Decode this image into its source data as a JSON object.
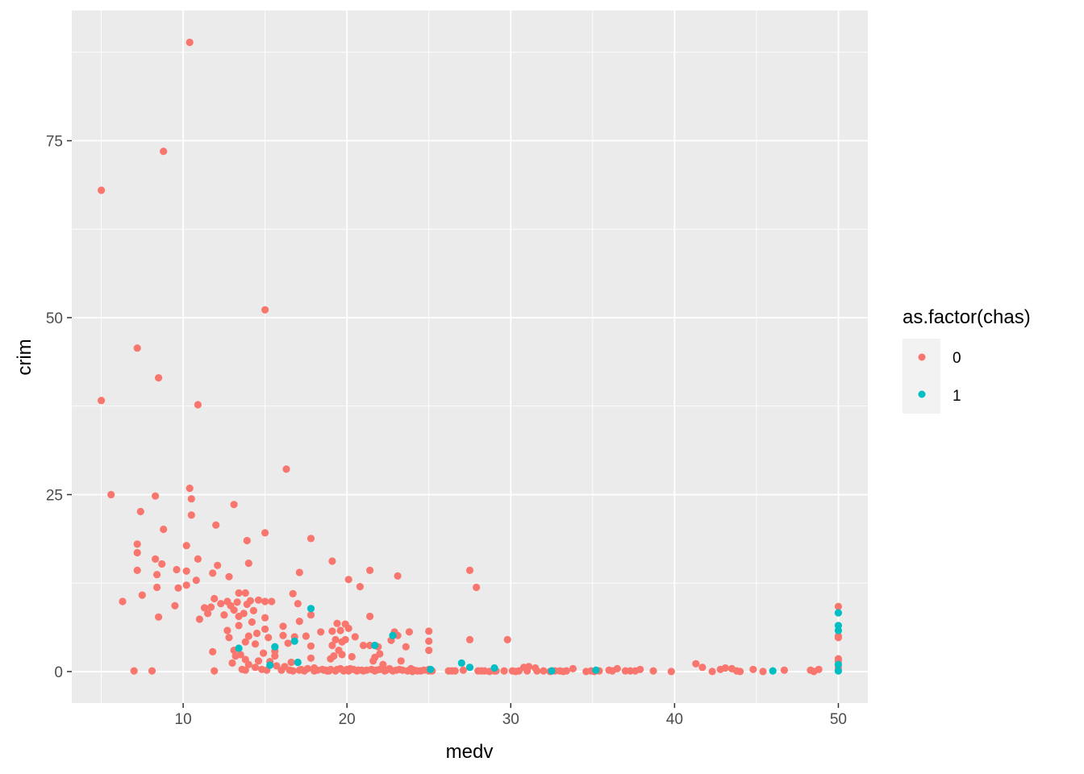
{
  "chart_data": {
    "type": "scatter",
    "title": "",
    "xlabel": "medv",
    "ylabel": "crim",
    "xlim": [
      3.2,
      51.8
    ],
    "ylim": [
      -4.45,
      93.4
    ],
    "x_ticks": [
      10,
      20,
      30,
      40,
      50
    ],
    "y_ticks": [
      0,
      25,
      50,
      75
    ],
    "x_tick_labels": [
      "10",
      "20",
      "30",
      "40",
      "50"
    ],
    "y_tick_labels": [
      "0",
      "25",
      "50",
      "75"
    ],
    "grid": true,
    "legend": {
      "title": "as.factor(chas)",
      "position": "right",
      "entries": [
        {
          "label": "0",
          "color": "#F8766D"
        },
        {
          "label": "1",
          "color": "#00BFC4"
        }
      ]
    },
    "series": [
      {
        "name": "0",
        "color": "#F8766D",
        "points": [
          [
            5,
            68.0
          ],
          [
            5,
            38.3
          ],
          [
            5.6,
            25.0
          ],
          [
            6.3,
            9.9
          ],
          [
            7,
            0.1
          ],
          [
            7.2,
            45.7
          ],
          [
            7.2,
            18.0
          ],
          [
            7.2,
            16.8
          ],
          [
            7.2,
            14.3
          ],
          [
            7.4,
            22.6
          ],
          [
            7.5,
            10.8
          ],
          [
            8.1,
            0.1
          ],
          [
            8.3,
            24.8
          ],
          [
            8.3,
            15.9
          ],
          [
            8.4,
            13.7
          ],
          [
            8.4,
            11.9
          ],
          [
            8.5,
            41.5
          ],
          [
            8.5,
            7.7
          ],
          [
            8.7,
            15.2
          ],
          [
            8.8,
            73.5
          ],
          [
            8.8,
            20.1
          ],
          [
            9.5,
            9.3
          ],
          [
            9.6,
            14.4
          ],
          [
            9.7,
            11.8
          ],
          [
            10.2,
            14.2
          ],
          [
            10.2,
            12.2
          ],
          [
            10.2,
            17.8
          ],
          [
            10.4,
            88.9
          ],
          [
            10.4,
            25.9
          ],
          [
            10.5,
            24.4
          ],
          [
            10.5,
            22.1
          ],
          [
            10.8,
            12.9
          ],
          [
            10.9,
            37.7
          ],
          [
            10.9,
            15.9
          ],
          [
            11,
            7.4
          ],
          [
            11.3,
            9.0
          ],
          [
            11.5,
            8.2
          ],
          [
            11.7,
            9.1
          ],
          [
            11.8,
            13.9
          ],
          [
            11.8,
            2.8
          ],
          [
            11.9,
            10.3
          ],
          [
            11.9,
            0.1
          ],
          [
            12,
            20.7
          ],
          [
            12.1,
            15.0
          ],
          [
            12.3,
            9.6
          ],
          [
            12.5,
            8.0
          ],
          [
            12.7,
            9.9
          ],
          [
            12.7,
            5.8
          ],
          [
            12.8,
            13.4
          ],
          [
            12.8,
            4.8
          ],
          [
            12.9,
            9.3
          ],
          [
            13,
            1.2
          ],
          [
            13.1,
            23.6
          ],
          [
            13.1,
            8.7
          ],
          [
            13.1,
            3.0
          ],
          [
            13.2,
            2.2
          ],
          [
            13.3,
            9.8
          ],
          [
            13.4,
            11.1
          ],
          [
            13.4,
            7.8
          ],
          [
            13.4,
            6.5
          ],
          [
            13.5,
            2.4
          ],
          [
            13.6,
            0.3
          ],
          [
            13.7,
            8.2
          ],
          [
            13.8,
            11.1
          ],
          [
            13.8,
            4.2
          ],
          [
            13.8,
            1.7
          ],
          [
            13.8,
            0.2
          ],
          [
            13.9,
            18.5
          ],
          [
            13.9,
            9.5
          ],
          [
            14,
            15.3
          ],
          [
            14,
            5.0
          ],
          [
            14,
            1.0
          ],
          [
            14.1,
            10.0
          ],
          [
            14.2,
            7.0
          ],
          [
            14.3,
            8.6
          ],
          [
            14.4,
            3.9
          ],
          [
            14.4,
            0.6
          ],
          [
            14.5,
            5.4
          ],
          [
            14.6,
            1.5
          ],
          [
            14.6,
            10.1
          ],
          [
            14.8,
            0.3
          ],
          [
            14.9,
            2.6
          ],
          [
            15,
            9.9
          ],
          [
            15,
            7.6
          ],
          [
            15,
            6.0
          ],
          [
            15,
            51.1
          ],
          [
            15,
            19.6
          ],
          [
            15.1,
            0.2
          ],
          [
            15.2,
            4.8
          ],
          [
            15.3,
            1.4
          ],
          [
            15.4,
            9.9
          ],
          [
            15.6,
            2.9
          ],
          [
            15.6,
            3.5
          ],
          [
            15.6,
            2.2
          ],
          [
            15.7,
            0.8
          ],
          [
            16,
            0.2
          ],
          [
            16.1,
            6.4
          ],
          [
            16.1,
            5.1
          ],
          [
            16.2,
            0.7
          ],
          [
            16.3,
            28.6
          ],
          [
            16.4,
            4.0
          ],
          [
            16.5,
            0.2
          ],
          [
            16.6,
            1.3
          ],
          [
            16.7,
            11.0
          ],
          [
            16.7,
            0.1
          ],
          [
            16.8,
            4.9
          ],
          [
            17,
            9.6
          ],
          [
            17.1,
            7.1
          ],
          [
            17.1,
            14.0
          ],
          [
            17.1,
            0.2
          ],
          [
            17.2,
            0.3
          ],
          [
            17.4,
            0.1
          ],
          [
            17.5,
            5.0
          ],
          [
            17.6,
            0.4
          ],
          [
            17.8,
            8.0
          ],
          [
            17.8,
            18.8
          ],
          [
            17.8,
            1.9
          ],
          [
            17.8,
            3.6
          ],
          [
            18,
            0.5
          ],
          [
            18,
            0.1
          ],
          [
            18.2,
            0.2
          ],
          [
            18.4,
            5.6
          ],
          [
            18.5,
            0.3
          ],
          [
            18.6,
            0.2
          ],
          [
            18.7,
            0.2
          ],
          [
            18.8,
            0.1
          ],
          [
            18.9,
            0.1
          ],
          [
            19,
            1.8
          ],
          [
            19,
            0.3
          ],
          [
            19.1,
            15.6
          ],
          [
            19.1,
            5.7
          ],
          [
            19.1,
            3.7
          ],
          [
            19.2,
            2.2
          ],
          [
            19.3,
            4.5
          ],
          [
            19.3,
            0.1
          ],
          [
            19.4,
            6.8
          ],
          [
            19.4,
            0.3
          ],
          [
            19.5,
            3.0
          ],
          [
            19.6,
            0.4
          ],
          [
            19.6,
            5.8
          ],
          [
            19.7,
            4.2
          ],
          [
            19.7,
            2.4
          ],
          [
            19.8,
            0.1
          ],
          [
            19.9,
            6.7
          ],
          [
            19.9,
            4.5
          ],
          [
            20,
            0.3
          ],
          [
            20.1,
            13.0
          ],
          [
            20.1,
            6.1
          ],
          [
            20.1,
            0.1
          ],
          [
            20.2,
            0.4
          ],
          [
            20.3,
            2.1
          ],
          [
            20.4,
            0.3
          ],
          [
            20.5,
            4.9
          ],
          [
            20.6,
            0.1
          ],
          [
            20.7,
            0.2
          ],
          [
            20.8,
            12.0
          ],
          [
            20.9,
            0.2
          ],
          [
            21,
            3.7
          ],
          [
            21,
            0.1
          ],
          [
            21.2,
            0.2
          ],
          [
            21.4,
            3.7
          ],
          [
            21.4,
            14.3
          ],
          [
            21.4,
            7.8
          ],
          [
            21.5,
            0.3
          ],
          [
            21.6,
            1.5
          ],
          [
            21.7,
            0.1
          ],
          [
            21.7,
            2.0
          ],
          [
            21.8,
            0.2
          ],
          [
            21.9,
            3.5
          ],
          [
            22,
            0.3
          ],
          [
            22,
            2.5
          ],
          [
            22.2,
            1.0
          ],
          [
            22.3,
            0.1
          ],
          [
            22.4,
            0.2
          ],
          [
            22.6,
            0.4
          ],
          [
            22.7,
            4.4
          ],
          [
            22.8,
            0.1
          ],
          [
            22.9,
            5.6
          ],
          [
            23,
            0.2
          ],
          [
            23.1,
            13.5
          ],
          [
            23.1,
            5.1
          ],
          [
            23.2,
            0.3
          ],
          [
            23.3,
            1.5
          ],
          [
            23.4,
            0.2
          ],
          [
            23.6,
            3.5
          ],
          [
            23.7,
            0.1
          ],
          [
            23.8,
            5.6
          ],
          [
            23.9,
            0.4
          ],
          [
            24,
            0.0
          ],
          [
            24.1,
            0.2
          ],
          [
            24.3,
            0.1
          ],
          [
            24.5,
            0.1
          ],
          [
            24.7,
            0.2
          ],
          [
            25,
            4.3
          ],
          [
            25,
            5.7
          ],
          [
            25,
            0.3
          ],
          [
            25,
            0.1
          ],
          [
            25,
            3.0
          ],
          [
            25.2,
            0.1
          ],
          [
            26.2,
            0.1
          ],
          [
            26.4,
            0.1
          ],
          [
            26.6,
            0.1
          ],
          [
            27.1,
            0.2
          ],
          [
            27.5,
            14.3
          ],
          [
            27.5,
            4.5
          ],
          [
            27.9,
            11.9
          ],
          [
            28,
            0.1
          ],
          [
            28.2,
            0.1
          ],
          [
            28.4,
            0.1
          ],
          [
            28.7,
            0.0
          ],
          [
            29,
            0.1
          ],
          [
            29.1,
            0.1
          ],
          [
            29.6,
            0.1
          ],
          [
            29.8,
            4.5
          ],
          [
            30.1,
            0.1
          ],
          [
            30.3,
            0.0
          ],
          [
            30.5,
            0.1
          ],
          [
            30.8,
            0.6
          ],
          [
            31,
            0.1
          ],
          [
            31.1,
            0.7
          ],
          [
            31.5,
            0.5
          ],
          [
            31.6,
            0.1
          ],
          [
            32,
            0.1
          ],
          [
            32.4,
            0.0
          ],
          [
            32.7,
            0.1
          ],
          [
            33,
            0.1
          ],
          [
            33.2,
            0.0
          ],
          [
            33.4,
            0.1
          ],
          [
            33.8,
            0.4
          ],
          [
            34.6,
            0.0
          ],
          [
            34.9,
            0.1
          ],
          [
            35.1,
            0.0
          ],
          [
            35.4,
            0.1
          ],
          [
            36,
            0.2
          ],
          [
            36.2,
            0.1
          ],
          [
            36.5,
            0.4
          ],
          [
            37,
            0.1
          ],
          [
            37.3,
            0.1
          ],
          [
            37.6,
            0.1
          ],
          [
            37.9,
            0.3
          ],
          [
            38.7,
            0.1
          ],
          [
            39.8,
            0.0
          ],
          [
            41.3,
            1.1
          ],
          [
            41.7,
            0.6
          ],
          [
            42.3,
            0.0
          ],
          [
            42.8,
            0.3
          ],
          [
            43.1,
            0.5
          ],
          [
            43.5,
            0.4
          ],
          [
            43.8,
            0.1
          ],
          [
            44,
            0.0
          ],
          [
            44.8,
            0.3
          ],
          [
            45.4,
            0.0
          ],
          [
            46.7,
            0.2
          ],
          [
            48.3,
            0.2
          ],
          [
            48.5,
            0.0
          ],
          [
            48.8,
            0.3
          ],
          [
            50,
            9.2
          ],
          [
            50,
            5.0
          ],
          [
            50,
            4.8
          ],
          [
            50,
            1.8
          ],
          [
            50,
            1.5
          ],
          [
            50,
            0.5
          ]
        ]
      },
      {
        "name": "1",
        "color": "#00BFC4",
        "points": [
          [
            13.4,
            3.3
          ],
          [
            15.3,
            0.9
          ],
          [
            15.6,
            3.5
          ],
          [
            16.8,
            4.3
          ],
          [
            17,
            1.3
          ],
          [
            17.8,
            8.9
          ],
          [
            21.7,
            3.7
          ],
          [
            22.8,
            5.1
          ],
          [
            25.1,
            0.3
          ],
          [
            27,
            1.2
          ],
          [
            27.5,
            0.6
          ],
          [
            29,
            0.5
          ],
          [
            32.5,
            0.1
          ],
          [
            35.2,
            0.2
          ],
          [
            46,
            0.1
          ],
          [
            50,
            8.3
          ],
          [
            50,
            6.5
          ],
          [
            50,
            5.8
          ],
          [
            50,
            1.0
          ],
          [
            50,
            0.1
          ]
        ]
      }
    ]
  }
}
